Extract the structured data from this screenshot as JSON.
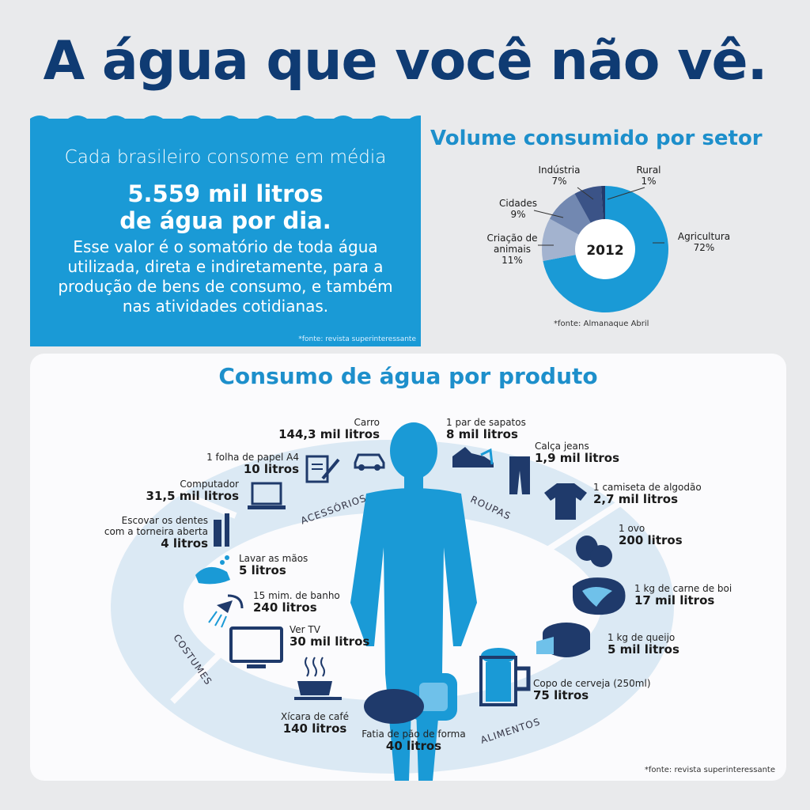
{
  "title": "A água que você não vê.",
  "intro": {
    "lead": "Cada brasileiro consome em média",
    "big_line1": "5.559 mil litros",
    "big_line2": "de água por dia.",
    "body": "Esse valor é o somatório de toda água utilizada, direta e indiretamente, para a produção de bens de consumo, e também nas atividades cotidianas.",
    "source": "*fonte: revista superinteressante"
  },
  "sector": {
    "title": "Volume consumido por setor",
    "center_label": "2012",
    "source": "*fonte: Almanaque Abril",
    "slices": [
      {
        "name": "Agricultura",
        "value": "72%",
        "pct": 72,
        "color": "#1a9ad6"
      },
      {
        "name": "Criação de animais",
        "value": "11%",
        "pct": 11,
        "color": "#a3b3cf"
      },
      {
        "name": "Cidades",
        "value": "9%",
        "pct": 9,
        "color": "#7288b1"
      },
      {
        "name": "Indústria",
        "value": "7%",
        "pct": 7,
        "color": "#3b5387"
      },
      {
        "name": "Rural",
        "value": "1%",
        "pct": 1,
        "color": "#233a6b"
      }
    ]
  },
  "products": {
    "title": "Consumo de água por produto",
    "source": "*fonte: revista superinteressante",
    "groups": {
      "acessorios": "ACESSÓRIOS",
      "roupas": "ROUPAS",
      "alimentos": "ALIMENTOS",
      "costumes": "COSTUMES"
    },
    "items": {
      "carro": {
        "name": "Carro",
        "value": "144,3 mil litros"
      },
      "papel": {
        "name": "1 folha de papel A4",
        "value": "10 litros"
      },
      "computador": {
        "name": "Computador",
        "value": "31,5 mil litros"
      },
      "escovar": {
        "name1": "Escovar os dentes",
        "name2": "com a torneira aberta",
        "value": "4 litros"
      },
      "maos": {
        "name": "Lavar as mãos",
        "value": "5 litros"
      },
      "banho": {
        "name": "15 mim. de banho",
        "value": "240 litros"
      },
      "tv": {
        "name": "Ver TV",
        "value": "30 mil litros"
      },
      "cafe": {
        "name": "Xícara de café",
        "value": "140 litros"
      },
      "pao": {
        "name": "Fatia de pão de forma",
        "value": "40 litros"
      },
      "sapatos": {
        "name": "1 par de sapatos",
        "value": "8 mil litros"
      },
      "jeans": {
        "name": "Calça jeans",
        "value": "1,9 mil litros"
      },
      "camiseta": {
        "name": "1 camiseta de algodão",
        "value": "2,7 mil litros"
      },
      "ovo": {
        "name": "1 ovo",
        "value": "200 litros"
      },
      "carne": {
        "name": "1 kg de carne de boi",
        "value": "17 mil litros"
      },
      "queijo": {
        "name": "1 kg de queijo",
        "value": "5 mil litros"
      },
      "cerveja": {
        "name": "Copo de cerveja (250ml)",
        "value": "75 litros"
      }
    }
  }
}
